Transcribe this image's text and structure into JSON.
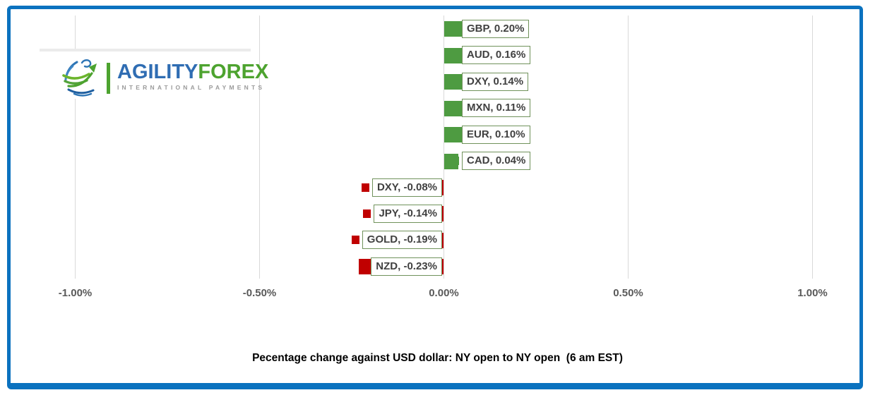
{
  "frame": {
    "border_color": "#0b72bf"
  },
  "logo": {
    "brand_primary": "AGILITY",
    "brand_secondary": "FOREX",
    "tagline": "INTERNATIONAL PAYMENTS",
    "colors": {
      "blue": "#2f6db3",
      "green": "#4da32f",
      "gray": "#9b9b9b"
    }
  },
  "chart_data": {
    "type": "bar",
    "orientation": "horizontal",
    "title": "Pecentage change against USD dollar: NY open to NY open  (6 am EST)",
    "xlabel": "",
    "ylabel": "",
    "xlim": [
      -1.0,
      1.0
    ],
    "grid": true,
    "legend": "none",
    "positive_color": "#4e9b41",
    "negative_color": "#c00000",
    "label_border_color": "#70925b",
    "gridline_color": "#d9d9d9",
    "axis_ticks": [
      {
        "value": -1.0,
        "label": "-1.00%"
      },
      {
        "value": -0.5,
        "label": "-0.50%"
      },
      {
        "value": 0.0,
        "label": "0.00%"
      },
      {
        "value": 0.5,
        "label": "0.50%"
      },
      {
        "value": 1.0,
        "label": "1.00%"
      }
    ],
    "points": [
      {
        "category": "GBP",
        "value": 0.2,
        "display": "GBP, 0.20%"
      },
      {
        "category": "AUD",
        "value": 0.16,
        "display": "AUD, 0.16%"
      },
      {
        "category": "DXY",
        "value": 0.14,
        "display": "DXY, 0.14%"
      },
      {
        "category": "MXN",
        "value": 0.11,
        "display": "MXN, 0.11%"
      },
      {
        "category": "EUR",
        "value": 0.1,
        "display": "EUR, 0.10%"
      },
      {
        "category": "CAD",
        "value": 0.04,
        "display": "CAD, 0.04%"
      },
      {
        "category": "DXY",
        "value": -0.08,
        "display": "DXY, -0.08%"
      },
      {
        "category": "JPY",
        "value": -0.14,
        "display": "JPY, -0.14%"
      },
      {
        "category": "GOLD",
        "value": -0.19,
        "display": "GOLD, -0.19%"
      },
      {
        "category": "NZD",
        "value": -0.23,
        "display": "NZD, -0.23%"
      }
    ]
  }
}
